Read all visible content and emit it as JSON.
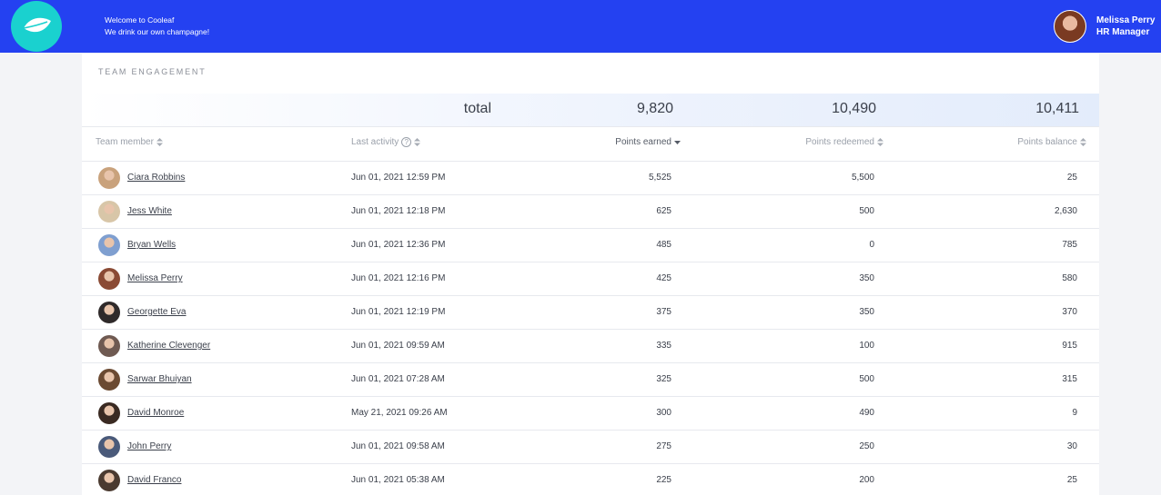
{
  "header": {
    "welcome": "Welcome to Cooleaf",
    "tagline": "We drink our own champagne!",
    "user_name": "Melissa Perry",
    "user_role": "HR Manager"
  },
  "section_title": "TEAM ENGAGEMENT",
  "totals": {
    "label": "total",
    "points_earned": "9,820",
    "points_redeemed": "10,490",
    "points_balance": "10,411"
  },
  "table": {
    "columns": [
      "Team member",
      "Last activity",
      "Points earned",
      "Points redeemed",
      "Points balance"
    ],
    "help_icon": "?",
    "rows": [
      [
        "Ciara Robbins",
        "Jun 01, 2021 12:59 PM",
        "5,525",
        "5,500",
        "25"
      ],
      [
        "Jess White",
        "Jun 01, 2021 12:18 PM",
        "625",
        "500",
        "2,630"
      ],
      [
        "Bryan Wells",
        "Jun 01, 2021 12:36 PM",
        "485",
        "0",
        "785"
      ],
      [
        "Melissa Perry",
        "Jun 01, 2021 12:16 PM",
        "425",
        "350",
        "580"
      ],
      [
        "Georgette Eva",
        "Jun 01, 2021 12:19 PM",
        "375",
        "350",
        "370"
      ],
      [
        "Katherine Clevenger",
        "Jun 01, 2021 09:59 AM",
        "335",
        "100",
        "915"
      ],
      [
        "Sarwar Bhuiyan",
        "Jun 01, 2021 07:28 AM",
        "325",
        "500",
        "315"
      ],
      [
        "David Monroe",
        "May 21, 2021 09:26 AM",
        "300",
        "490",
        "9"
      ],
      [
        "John Perry",
        "Jun 01, 2021 09:58 AM",
        "275",
        "250",
        "30"
      ],
      [
        "David Franco",
        "Jun 01, 2021 05:38 AM",
        "225",
        "200",
        "25"
      ]
    ]
  }
}
